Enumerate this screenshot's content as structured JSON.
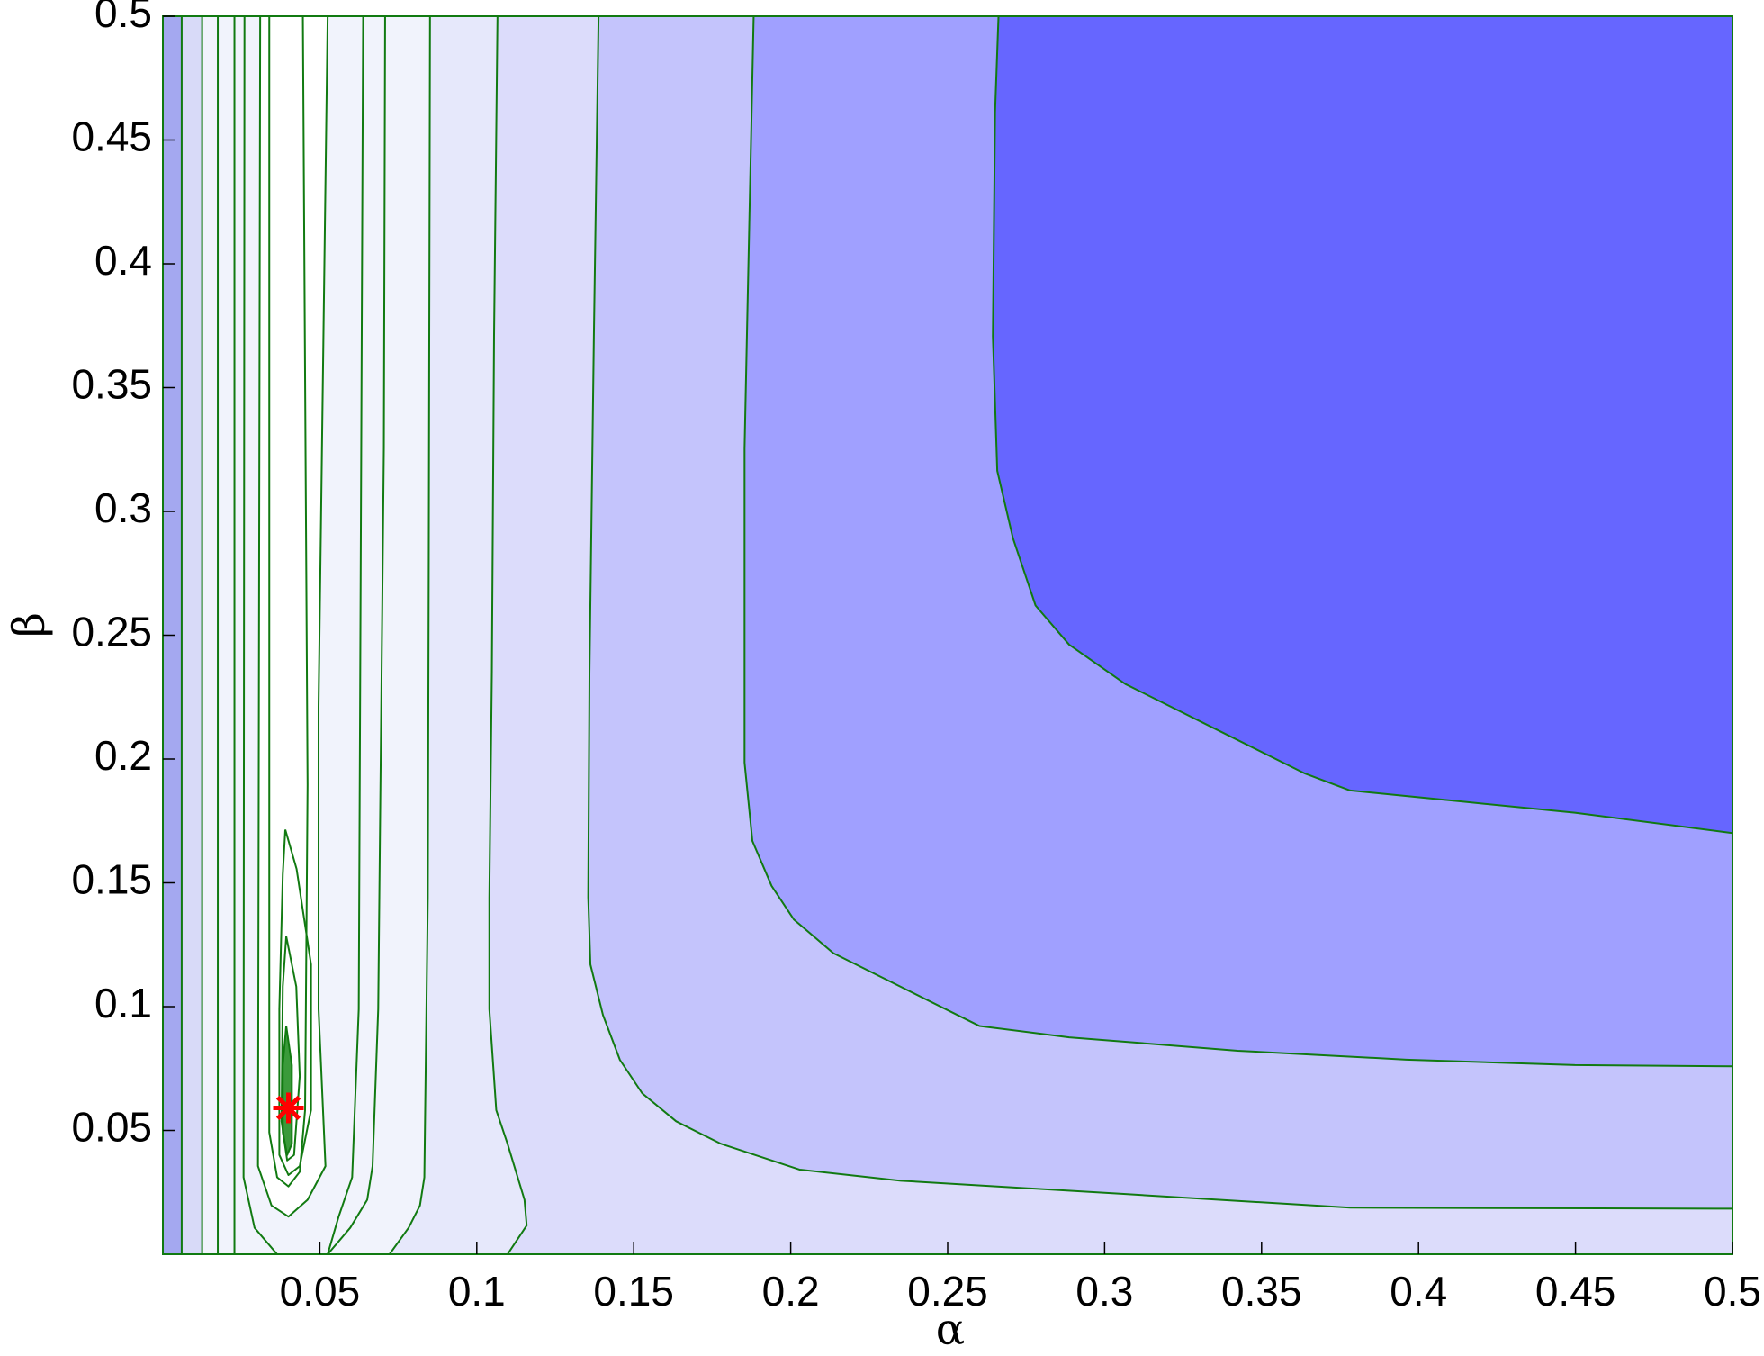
{
  "chart_data": {
    "type": "contour",
    "xlabel": "α",
    "ylabel": "β",
    "xlim": [
      0,
      0.5
    ],
    "ylim": [
      0,
      0.5
    ],
    "xticks": [
      0.05,
      0.1,
      0.15,
      0.2,
      0.25,
      0.3,
      0.35,
      0.4,
      0.45,
      0.5
    ],
    "yticks": [
      0.05,
      0.1,
      0.15,
      0.2,
      0.25,
      0.3,
      0.35,
      0.4,
      0.45,
      0.5
    ],
    "plot_background": "#a4a8f0",
    "line_color": "#117a11",
    "contours": [
      {
        "x": [
          0.006,
          0.006
        ],
        "y": [
          0.5,
          0
        ],
        "fill": "#d8daf8"
      },
      {
        "x": [
          0.0125,
          0.0125
        ],
        "y": [
          0.5,
          0
        ],
        "fill": "#f1f3fc"
      },
      {
        "x": [
          0.0175,
          0.0175
        ],
        "y": [
          0.5,
          0
        ]
      },
      {
        "x": [
          0.0228,
          0.0228
        ],
        "y": [
          0.5,
          0
        ]
      },
      {
        "x": [
          0.026,
          0.0257,
          0.0292,
          0.0364
        ],
        "y": [
          0.5,
          0.0311,
          0.0107,
          0
        ]
      },
      {
        "x": [
          0.0638,
          0.0624,
          0.0603,
          0.056,
          0.0525
        ],
        "y": [
          0.5,
          0.099,
          0.0311,
          0.0152,
          0
        ]
      },
      {
        "x": [
          0.0708,
          0.0704,
          0.0686,
          0.0668,
          0.0651,
          0.0597,
          0.0525
        ],
        "y": [
          0.5,
          0.3258,
          0.099,
          0.0356,
          0.022,
          0.0107,
          0
        ]
      },
      {
        "x": [
          0.031,
          0.0303,
          0.0346,
          0.04,
          0.0461,
          0.0518,
          0.0496,
          0.0496,
          0.0525
        ],
        "y": [
          0.5,
          0.0356,
          0.0197,
          0.0152,
          0.022,
          0.0356,
          0.099,
          0.2213,
          0.5
        ],
        "fill": "#ffffff"
      },
      {
        "x": [
          0.0339,
          0.0339,
          0.0364,
          0.04,
          0.0436,
          0.0453,
          0.0461,
          0.0446
        ],
        "y": [
          0.5,
          0.0492,
          0.0311,
          0.0274,
          0.0333,
          0.0582,
          0.1896,
          0.5
        ]
      },
      {
        "x": [
          0.039,
          0.0426,
          0.0472,
          0.0472,
          0.0436,
          0.04,
          0.0371,
          0.0371,
          0.0382,
          0.039
        ],
        "y": [
          0.1715,
          0.1556,
          0.1171,
          0.0582,
          0.0356,
          0.032,
          0.0401,
          0.099,
          0.1534,
          0.1715
        ]
      },
      {
        "x": [
          0.0393,
          0.0425,
          0.0436,
          0.0418,
          0.0396,
          0.0378,
          0.0382,
          0.0393
        ],
        "y": [
          0.1284,
          0.1081,
          0.0719,
          0.0401,
          0.0379,
          0.0537,
          0.1081,
          0.1284
        ]
      },
      {
        "x": [
          0.0393,
          0.0411,
          0.0411,
          0.0396,
          0.0382,
          0.0382,
          0.0393
        ],
        "y": [
          0.0922,
          0.0763,
          0.0446,
          0.0401,
          0.0492,
          0.0763,
          0.0922
        ],
        "fill": "#3a9a3a"
      },
      {
        "x": [
          0.0851,
          0.0847,
          0.0844,
          0.0833,
          0.0819,
          0.0783,
          0.0722
        ],
        "y": [
          0.5,
          0.2801,
          0.1442,
          0.0311,
          0.0197,
          0.0107,
          0
        ],
        "fill": "#e6e8fb"
      },
      {
        "x": [
          0.1066,
          0.1055,
          0.1048,
          0.104,
          0.104,
          0.1062,
          0.1098,
          0.1152,
          0.1159,
          0.1098
        ],
        "y": [
          0.5,
          0.3707,
          0.2348,
          0.1442,
          0.099,
          0.0582,
          0.0446,
          0.022,
          0.0116,
          0
        ],
        "fill": "#dcdcfb"
      },
      {
        "x": [
          0.1388,
          0.1373,
          0.1359,
          0.1355,
          0.1362,
          0.1402,
          0.1456,
          0.1527,
          0.1635,
          0.1778,
          0.2028,
          0.2351,
          0.3067,
          0.3782,
          0.5
        ],
        "y": [
          0.5,
          0.3707,
          0.2348,
          0.1442,
          0.117,
          0.0966,
          0.0785,
          0.065,
          0.0537,
          0.0446,
          0.0342,
          0.0297,
          0.0243,
          0.0188,
          0.0184
        ],
        "fill": "#c4c4fc"
      },
      {
        "x": [
          0.1882,
          0.1868,
          0.1853,
          0.1853,
          0.1878,
          0.1939,
          0.201,
          0.2136,
          0.2351,
          0.2601,
          0.2887,
          0.3424,
          0.3961,
          0.4498,
          0.5
        ],
        "y": [
          0.5,
          0.416,
          0.3254,
          0.1986,
          0.1669,
          0.1488,
          0.1352,
          0.1216,
          0.108,
          0.0922,
          0.0876,
          0.0822,
          0.0786,
          0.0764,
          0.0759
        ],
        "fill": "#a0a0ff"
      },
      {
        "x": [
          0.2662,
          0.2651,
          0.2644,
          0.2658,
          0.2708,
          0.278,
          0.2887,
          0.3066,
          0.3352,
          0.3639,
          0.3782,
          0.414,
          0.4498,
          0.5
        ],
        "y": [
          0.5,
          0.4613,
          0.3707,
          0.3164,
          0.2892,
          0.262,
          0.2462,
          0.2303,
          0.2122,
          0.1941,
          0.1873,
          0.1828,
          0.1783,
          0.1701
        ],
        "fill": "#6666ff"
      }
    ],
    "marker": {
      "x": 0.04,
      "y": 0.0591,
      "color": "#ff0000"
    }
  }
}
